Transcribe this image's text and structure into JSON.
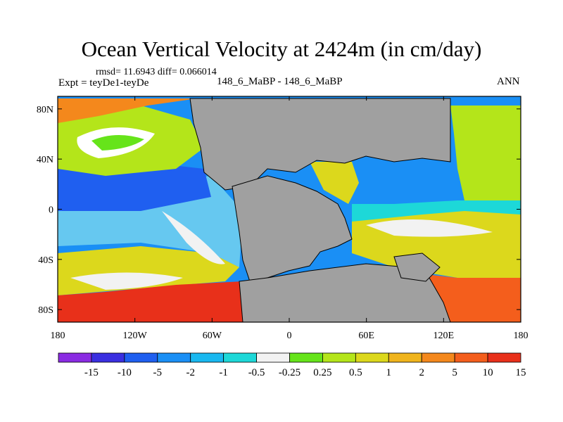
{
  "title": "Ocean Vertical Velocity at 2424m (in cm/day)",
  "stats": "rmsd= 11.6943 diff= 0.066014",
  "experiment": "Expt = teyDe1-teyDe",
  "cases": "148_6_MaBP - 148_6_MaBP",
  "season": "ANN",
  "map": {
    "lon_range": [
      -180,
      180
    ],
    "lat_range": [
      -90,
      90
    ],
    "land_color": "#a0a0a0",
    "x_ticks": [
      {
        "lon": -180,
        "label": "180"
      },
      {
        "lon": -120,
        "label": "120W"
      },
      {
        "lon": -60,
        "label": "60W"
      },
      {
        "lon": 0,
        "label": "0"
      },
      {
        "lon": 60,
        "label": "60E"
      },
      {
        "lon": 120,
        "label": "120E"
      },
      {
        "lon": 180,
        "label": "180"
      }
    ],
    "y_ticks": [
      {
        "lat": 80,
        "label": "80N"
      },
      {
        "lat": 40,
        "label": "40N"
      },
      {
        "lat": 0,
        "label": "0"
      },
      {
        "lat": -40,
        "label": "40S"
      },
      {
        "lat": -80,
        "label": "80S"
      }
    ]
  },
  "colorbar": {
    "colors": [
      "#8a2be2",
      "#3a2fe0",
      "#1f5ff0",
      "#1a8ff5",
      "#19b8f0",
      "#1dd8d8",
      "#f2f2f2",
      "#66e41a",
      "#b4e51a",
      "#dcd81c",
      "#f0b41c",
      "#f4881c",
      "#f45e1c",
      "#e8301a"
    ],
    "labels": [
      "-15",
      "-10",
      "-5",
      "-2",
      "-1",
      "-0.5",
      "-0.25",
      "0.25",
      "0.5",
      "1",
      "2",
      "5",
      "10",
      "15"
    ]
  }
}
